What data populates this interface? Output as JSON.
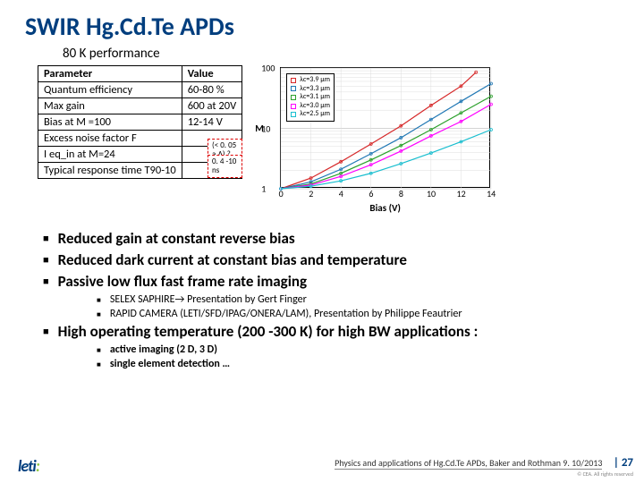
{
  "title": "SWIR Hg.Cd.Te APDs",
  "subtitle": "80 K performance",
  "table": {
    "headers": [
      "Parameter",
      "Value"
    ],
    "rows": [
      [
        "Quantum efficiency",
        "60-80 %"
      ],
      [
        "Max gain",
        "600 at 20V"
      ],
      [
        "Bias at M =100",
        "12-14  V"
      ],
      [
        "Excess noise factor F",
        ""
      ],
      [
        "I eq_in at M=24",
        ""
      ],
      [
        "Typical response time T90-10",
        ""
      ]
    ],
    "overlay1": "(< 0. 05 a.A) ?",
    "overlay2": "0. 4 -10 ns"
  },
  "chart": {
    "ylabel": "M",
    "xlabel": "Bias (V)",
    "ylim": [
      1,
      100
    ],
    "xlim": [
      0,
      14
    ],
    "xticks": [
      0,
      2,
      4,
      6,
      8,
      10,
      12,
      14
    ],
    "yticks": [
      {
        "v": 1,
        "l": "1"
      },
      {
        "v": 10,
        "l": "10"
      },
      {
        "v": 100,
        "l": "100"
      }
    ],
    "legend": [
      {
        "label": "λc=3.9 µm",
        "color": "#d62728",
        "sym": "circle"
      },
      {
        "label": "λc=3.3 µm",
        "color": "#1f77b4",
        "sym": "triangle"
      },
      {
        "label": "λc=3.1 µm",
        "color": "#2ca02c",
        "sym": "diamond"
      },
      {
        "label": "λc=3.0 µm",
        "color": "#ff00ff",
        "sym": "square"
      },
      {
        "label": "λc=2.5 µm",
        "color": "#17becf",
        "sym": "x"
      }
    ],
    "series": [
      {
        "color": "#d62728",
        "pts": [
          [
            0,
            1
          ],
          [
            2,
            1.5
          ],
          [
            4,
            2.8
          ],
          [
            6,
            5.5
          ],
          [
            8,
            11
          ],
          [
            10,
            24
          ],
          [
            12,
            50
          ],
          [
            13,
            85
          ]
        ]
      },
      {
        "color": "#1f77b4",
        "pts": [
          [
            0,
            1
          ],
          [
            2,
            1.3
          ],
          [
            4,
            2.1
          ],
          [
            6,
            3.8
          ],
          [
            8,
            7
          ],
          [
            10,
            14
          ],
          [
            12,
            28
          ],
          [
            14,
            55
          ]
        ]
      },
      {
        "color": "#2ca02c",
        "pts": [
          [
            0,
            1
          ],
          [
            2,
            1.2
          ],
          [
            4,
            1.8
          ],
          [
            6,
            3
          ],
          [
            8,
            5.2
          ],
          [
            10,
            9.5
          ],
          [
            12,
            18
          ],
          [
            14,
            34
          ]
        ]
      },
      {
        "color": "#ff00ff",
        "pts": [
          [
            0,
            1
          ],
          [
            2,
            1.15
          ],
          [
            4,
            1.6
          ],
          [
            6,
            2.5
          ],
          [
            8,
            4.2
          ],
          [
            10,
            7.5
          ],
          [
            12,
            13
          ],
          [
            14,
            25
          ]
        ]
      },
      {
        "color": "#17becf",
        "pts": [
          [
            0,
            1
          ],
          [
            2,
            1.1
          ],
          [
            4,
            1.35
          ],
          [
            6,
            1.8
          ],
          [
            8,
            2.6
          ],
          [
            10,
            3.9
          ],
          [
            12,
            6
          ],
          [
            14,
            9.5
          ]
        ]
      }
    ]
  },
  "bullets": {
    "main": [
      "Reduced gain at constant reverse bias",
      "Reduced dark current at constant bias and temperature",
      "Passive low flux fast frame rate imaging"
    ],
    "sub1": [
      "SELEX SAPHIRE→ Presentation by Gert Finger",
      "RAPID CAMERA (LETI/SFD/IPAG/ONERA/LAM), Presentation by Philippe Feautrier"
    ],
    "main2": "High operating temperature (200 -300 K) for high BW applications :",
    "sub2": [
      "active imaging (2 D, 3 D)",
      "single element detection …"
    ]
  },
  "footer": {
    "credit": "Physics and applications of Hg.Cd.Te APDs, Baker and Rothman  9. 10/2013",
    "page": "| 27",
    "copyright": "© CEA. All rights reserved"
  },
  "logo": "leti"
}
